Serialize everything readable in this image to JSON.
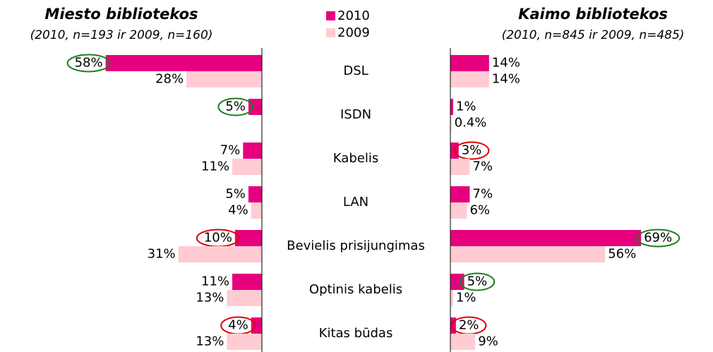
{
  "chart_data": {
    "type": "bar",
    "categories": [
      "DSL",
      "ISDN",
      "Kabelis",
      "LAN",
      "Bevielis prisijungimas",
      "Optinis kabelis",
      "Kitas būdas"
    ],
    "series": [
      {
        "name": "2010",
        "color": "#e6007e"
      },
      {
        "name": "2009",
        "color": "#ffccd3"
      }
    ],
    "panels": [
      {
        "title": "Miesto bibliotekos",
        "subtitle": "(2010, n=193 ir 2009, n=160)",
        "direction": "left",
        "xlim": [
          0,
          60
        ],
        "values": [
          [
            58,
            5,
            7,
            5,
            10,
            11,
            4
          ],
          [
            28,
            0,
            11,
            4,
            31,
            13,
            13
          ]
        ],
        "value_labels": [
          [
            "58%",
            "5%",
            "7%",
            "5%",
            "10%",
            "11%",
            "4%"
          ],
          [
            "28%",
            null,
            "11%",
            "4%",
            "31%",
            "13%",
            "13%"
          ]
        ],
        "circles": [
          [
            "#1a7f1a",
            "#1a7f1a",
            null,
            null,
            "#e00000",
            null,
            "#e00000"
          ],
          [
            null,
            null,
            null,
            null,
            null,
            null,
            null
          ]
        ]
      },
      {
        "title": "Kaimo bibliotekos",
        "subtitle": "(2010, n=845 ir 2009, n=485)",
        "direction": "right",
        "xlim": [
          0,
          70
        ],
        "values": [
          [
            14,
            1,
            3,
            7,
            69,
            5,
            2
          ],
          [
            14,
            0.4,
            7,
            6,
            56,
            1,
            9
          ]
        ],
        "value_labels": [
          [
            "14%",
            "1%",
            "3%",
            "7%",
            "69%",
            "5%",
            "2%"
          ],
          [
            "14%",
            "0.4%",
            "7%",
            "6%",
            "56%",
            "1%",
            "9%"
          ]
        ],
        "circles": [
          [
            null,
            null,
            "#e00000",
            null,
            "#1a7f1a",
            "#1a7f1a",
            "#e00000"
          ],
          [
            null,
            null,
            null,
            null,
            null,
            null,
            null
          ]
        ]
      }
    ]
  }
}
